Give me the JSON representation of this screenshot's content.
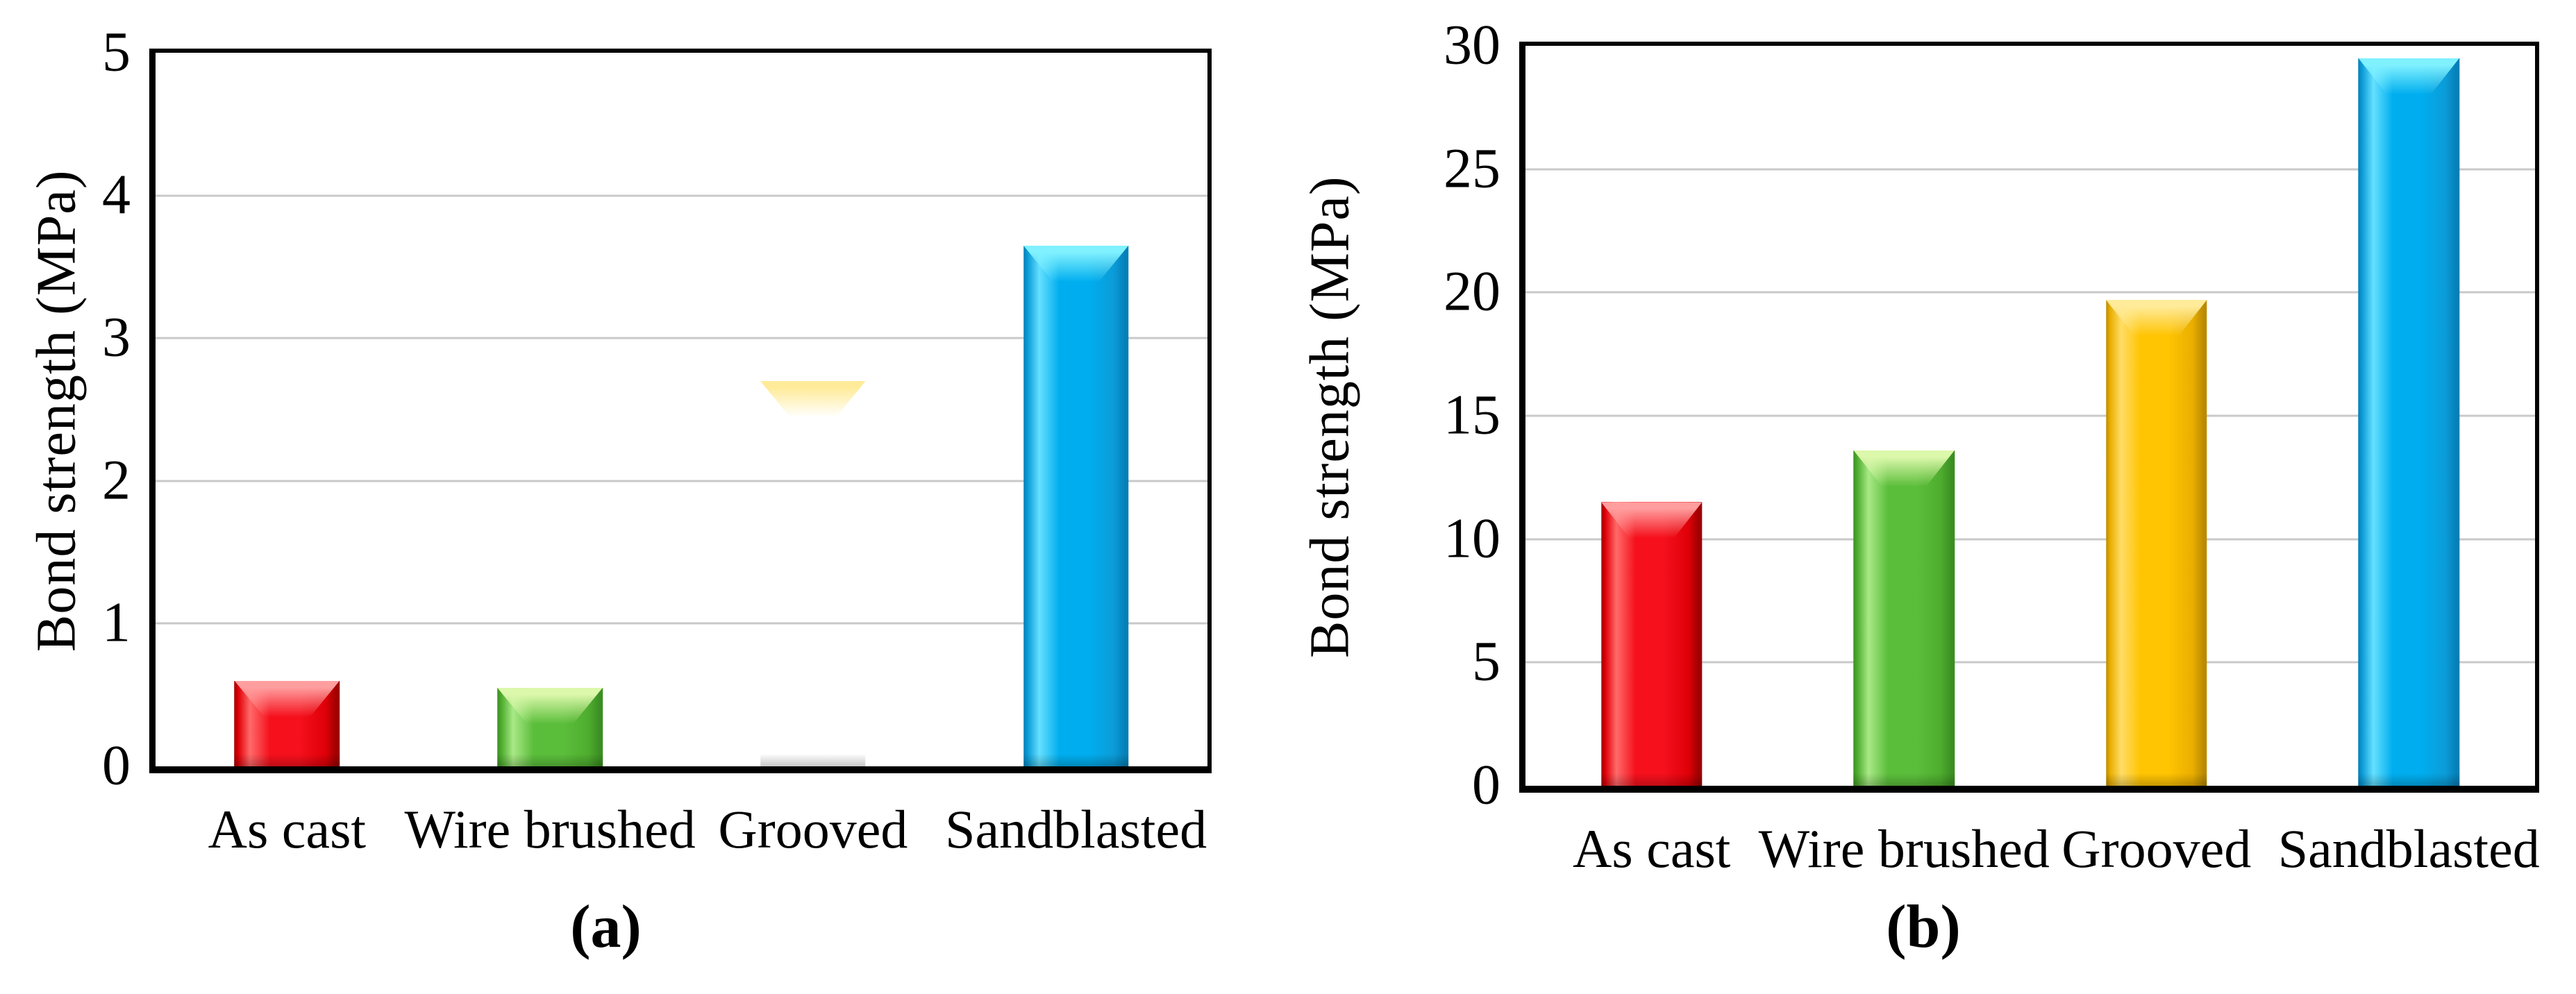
{
  "figure": {
    "background": "#ffffff",
    "frame_color": "#000000",
    "gridline_color": "#c9c9c9",
    "text_color": "#000000"
  },
  "chart_data": [
    {
      "type": "bar",
      "panel": "a",
      "caption": "(a)",
      "title": "",
      "xlabel": "",
      "ylabel": "Bond strength (MPa)",
      "categories": [
        "As cast",
        "Wire brushed",
        "Grooved",
        "Sandblasted"
      ],
      "values": [
        0.6,
        0.55,
        2.7,
        3.65
      ],
      "ylim": [
        0,
        5
      ],
      "yticks": [
        0,
        1,
        2,
        3,
        4,
        5
      ],
      "grid": "horizontal",
      "legend": "none",
      "bar_colors": [
        {
          "name": "red",
          "main": "#f5101c",
          "light": "#ff6a6a",
          "mid": "#e00008",
          "dark": "#9e0000",
          "gloss": "#ff9e9e"
        },
        {
          "name": "green",
          "main": "#5bbe3b",
          "light": "#a9e987",
          "mid": "#4ead2e",
          "dark": "#3b8f22",
          "gloss": "#dcf8ab"
        },
        {
          "name": "yellow",
          "main": "#ffc402",
          "light": "#ffdd66",
          "mid": "#eaa e00",
          "dark": "#ba8a00",
          "gloss": "#ffeb99"
        },
        {
          "name": "blue",
          "main": "#00aeef",
          "light": "#66e0ff",
          "mid": "#0b9cd8",
          "dark": "#067fb7",
          "gloss": "#80f1ff"
        }
      ]
    },
    {
      "type": "bar",
      "panel": "b",
      "caption": "(b)",
      "title": "",
      "xlabel": "",
      "ylabel": "Bond strength (MPa)",
      "categories": [
        "As cast",
        "Wire brushed",
        "Grooved",
        "Sandblasted"
      ],
      "values": [
        11.5,
        13.6,
        19.7,
        29.5
      ],
      "ylim": [
        0,
        30
      ],
      "yticks": [
        0,
        5,
        10,
        15,
        20,
        25,
        30
      ],
      "grid": "horizontal",
      "legend": "none",
      "bar_colors": [
        {
          "name": "red",
          "main": "#f5101c",
          "light": "#ff6a6a",
          "mid": "#e00008",
          "dark": "#9e0000",
          "gloss": "#ff9e9e"
        },
        {
          "name": "green",
          "main": "#5bbe3b",
          "light": "#a9e987",
          "mid": "#4ead2e",
          "dark": "#3b8f22",
          "gloss": "#dcf8ab"
        },
        {
          "name": "yellow",
          "main": "#ffc402",
          "light": "#ffdd66",
          "mid": "#eaae00",
          "dark": "#ba8a00",
          "gloss": "#ffeb99"
        },
        {
          "name": "blue",
          "main": "#00aeef",
          "light": "#66e0ff",
          "mid": "#0b9cd8",
          "dark": "#067fb7",
          "gloss": "#80f1ff"
        }
      ]
    }
  ]
}
